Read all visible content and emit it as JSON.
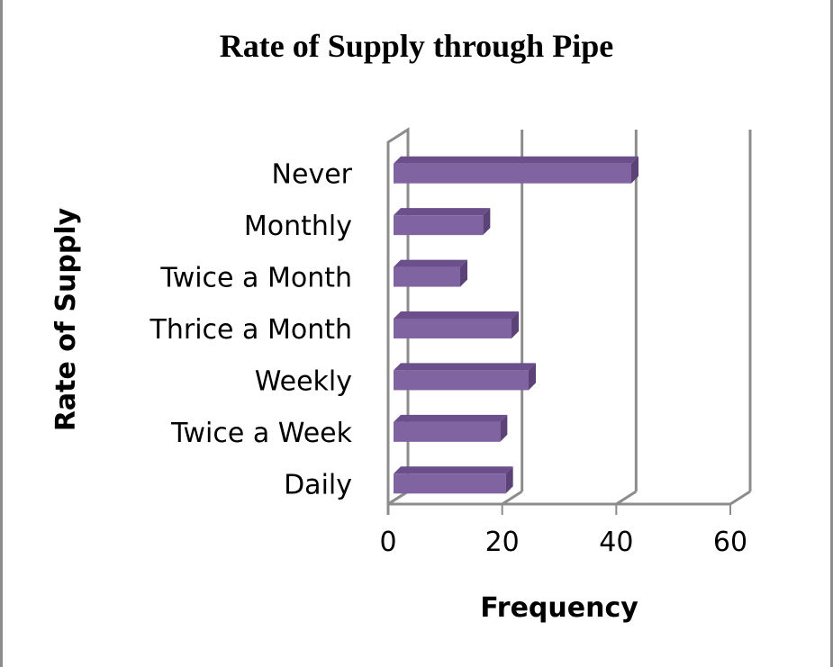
{
  "chart_data": {
    "type": "bar",
    "orientation": "horizontal",
    "title": "Rate of Supply through Pipe",
    "xlabel": "Frequency",
    "ylabel": "Rate of Supply",
    "categories": [
      "Never",
      "Monthly",
      "Twice a Month",
      "Thrice a Month",
      "Weekly",
      "Twice a Week",
      "Daily"
    ],
    "values": [
      42,
      16,
      12,
      21,
      24,
      19,
      20
    ],
    "xlim": [
      0,
      60
    ],
    "xticks": [
      "0",
      "20",
      "40",
      "60"
    ],
    "grid": true,
    "legend": "none",
    "bar_color": "#8064a2",
    "bar_top_color": "#6a4f8c",
    "bar_side_color": "#5b4377"
  }
}
